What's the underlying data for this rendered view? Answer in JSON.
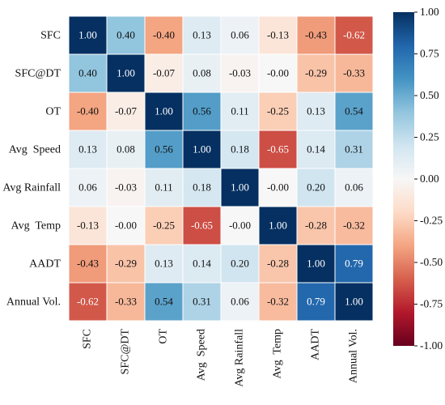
{
  "chart_data": {
    "type": "heatmap",
    "title": "",
    "xlabel": "",
    "ylabel": "",
    "row_labels": [
      "SFC",
      "SFC@DT",
      "OT",
      "Avg  Speed",
      "Avg Rainfall",
      "Avg  Temp",
      "AADT",
      "Annual Vol."
    ],
    "col_labels": [
      "SFC",
      "SFC@DT",
      "OT",
      "Avg  Speed",
      "Avg Rainfall",
      "Avg  Temp",
      "AADT",
      "Annual Vol."
    ],
    "values": [
      [
        1.0,
        0.4,
        -0.4,
        0.13,
        0.06,
        -0.13,
        -0.43,
        -0.62
      ],
      [
        0.4,
        1.0,
        -0.07,
        0.08,
        -0.03,
        -0.0,
        -0.29,
        -0.33
      ],
      [
        -0.4,
        -0.07,
        1.0,
        0.56,
        0.11,
        -0.25,
        0.13,
        0.54
      ],
      [
        0.13,
        0.08,
        0.56,
        1.0,
        0.18,
        -0.65,
        0.14,
        0.31
      ],
      [
        0.06,
        -0.03,
        0.11,
        0.18,
        1.0,
        -0.0,
        0.2,
        0.06
      ],
      [
        -0.13,
        -0.0,
        -0.25,
        -0.65,
        -0.0,
        1.0,
        -0.28,
        -0.32
      ],
      [
        -0.43,
        -0.29,
        0.13,
        0.14,
        0.2,
        -0.28,
        1.0,
        0.79
      ],
      [
        -0.62,
        -0.33,
        0.54,
        0.31,
        0.06,
        -0.32,
        0.79,
        1.0
      ]
    ],
    "value_labels": [
      [
        "1.00",
        "0.40",
        "-0.40",
        "0.13",
        "0.06",
        "-0.13",
        "-0.43",
        "-0.62"
      ],
      [
        "0.40",
        "1.00",
        "-0.07",
        "0.08",
        "-0.03",
        "-0.00",
        "-0.29",
        "-0.33"
      ],
      [
        "-0.40",
        "-0.07",
        "1.00",
        "0.56",
        "0.11",
        "-0.25",
        "0.13",
        "0.54"
      ],
      [
        "0.13",
        "0.08",
        "0.56",
        "1.00",
        "0.18",
        "-0.65",
        "0.14",
        "0.31"
      ],
      [
        "0.06",
        "-0.03",
        "0.11",
        "0.18",
        "1.00",
        "-0.00",
        "0.20",
        "0.06"
      ],
      [
        "-0.13",
        "-0.00",
        "-0.25",
        "-0.65",
        "-0.00",
        "1.00",
        "-0.28",
        "-0.32"
      ],
      [
        "-0.43",
        "-0.29",
        "0.13",
        "0.14",
        "0.20",
        "-0.28",
        "1.00",
        "0.79"
      ],
      [
        "-0.62",
        "-0.33",
        "0.54",
        "0.31",
        "0.06",
        "-0.32",
        "0.79",
        "1.00"
      ]
    ],
    "colormap": {
      "name": "RdBu",
      "stops": [
        "#67001f",
        "#b2182b",
        "#d6604d",
        "#f4a582",
        "#fddbc7",
        "#f7f7f7",
        "#d1e5f0",
        "#92c5de",
        "#4393c3",
        "#2166ac",
        "#053061"
      ]
    },
    "colorbar": {
      "range": [
        -1,
        1
      ],
      "ticks": [
        1.0,
        0.75,
        0.5,
        0.25,
        0.0,
        -0.25,
        -0.5,
        -0.75,
        -1.0
      ],
      "tick_labels": [
        "1.00",
        "0.75",
        "0.50",
        "0.25",
        "0.00",
        "-0.25",
        "-0.50",
        "-0.75",
        "-1.00"
      ],
      "placement": "right"
    },
    "grid": false,
    "cell_border_color": "#ffffff"
  }
}
